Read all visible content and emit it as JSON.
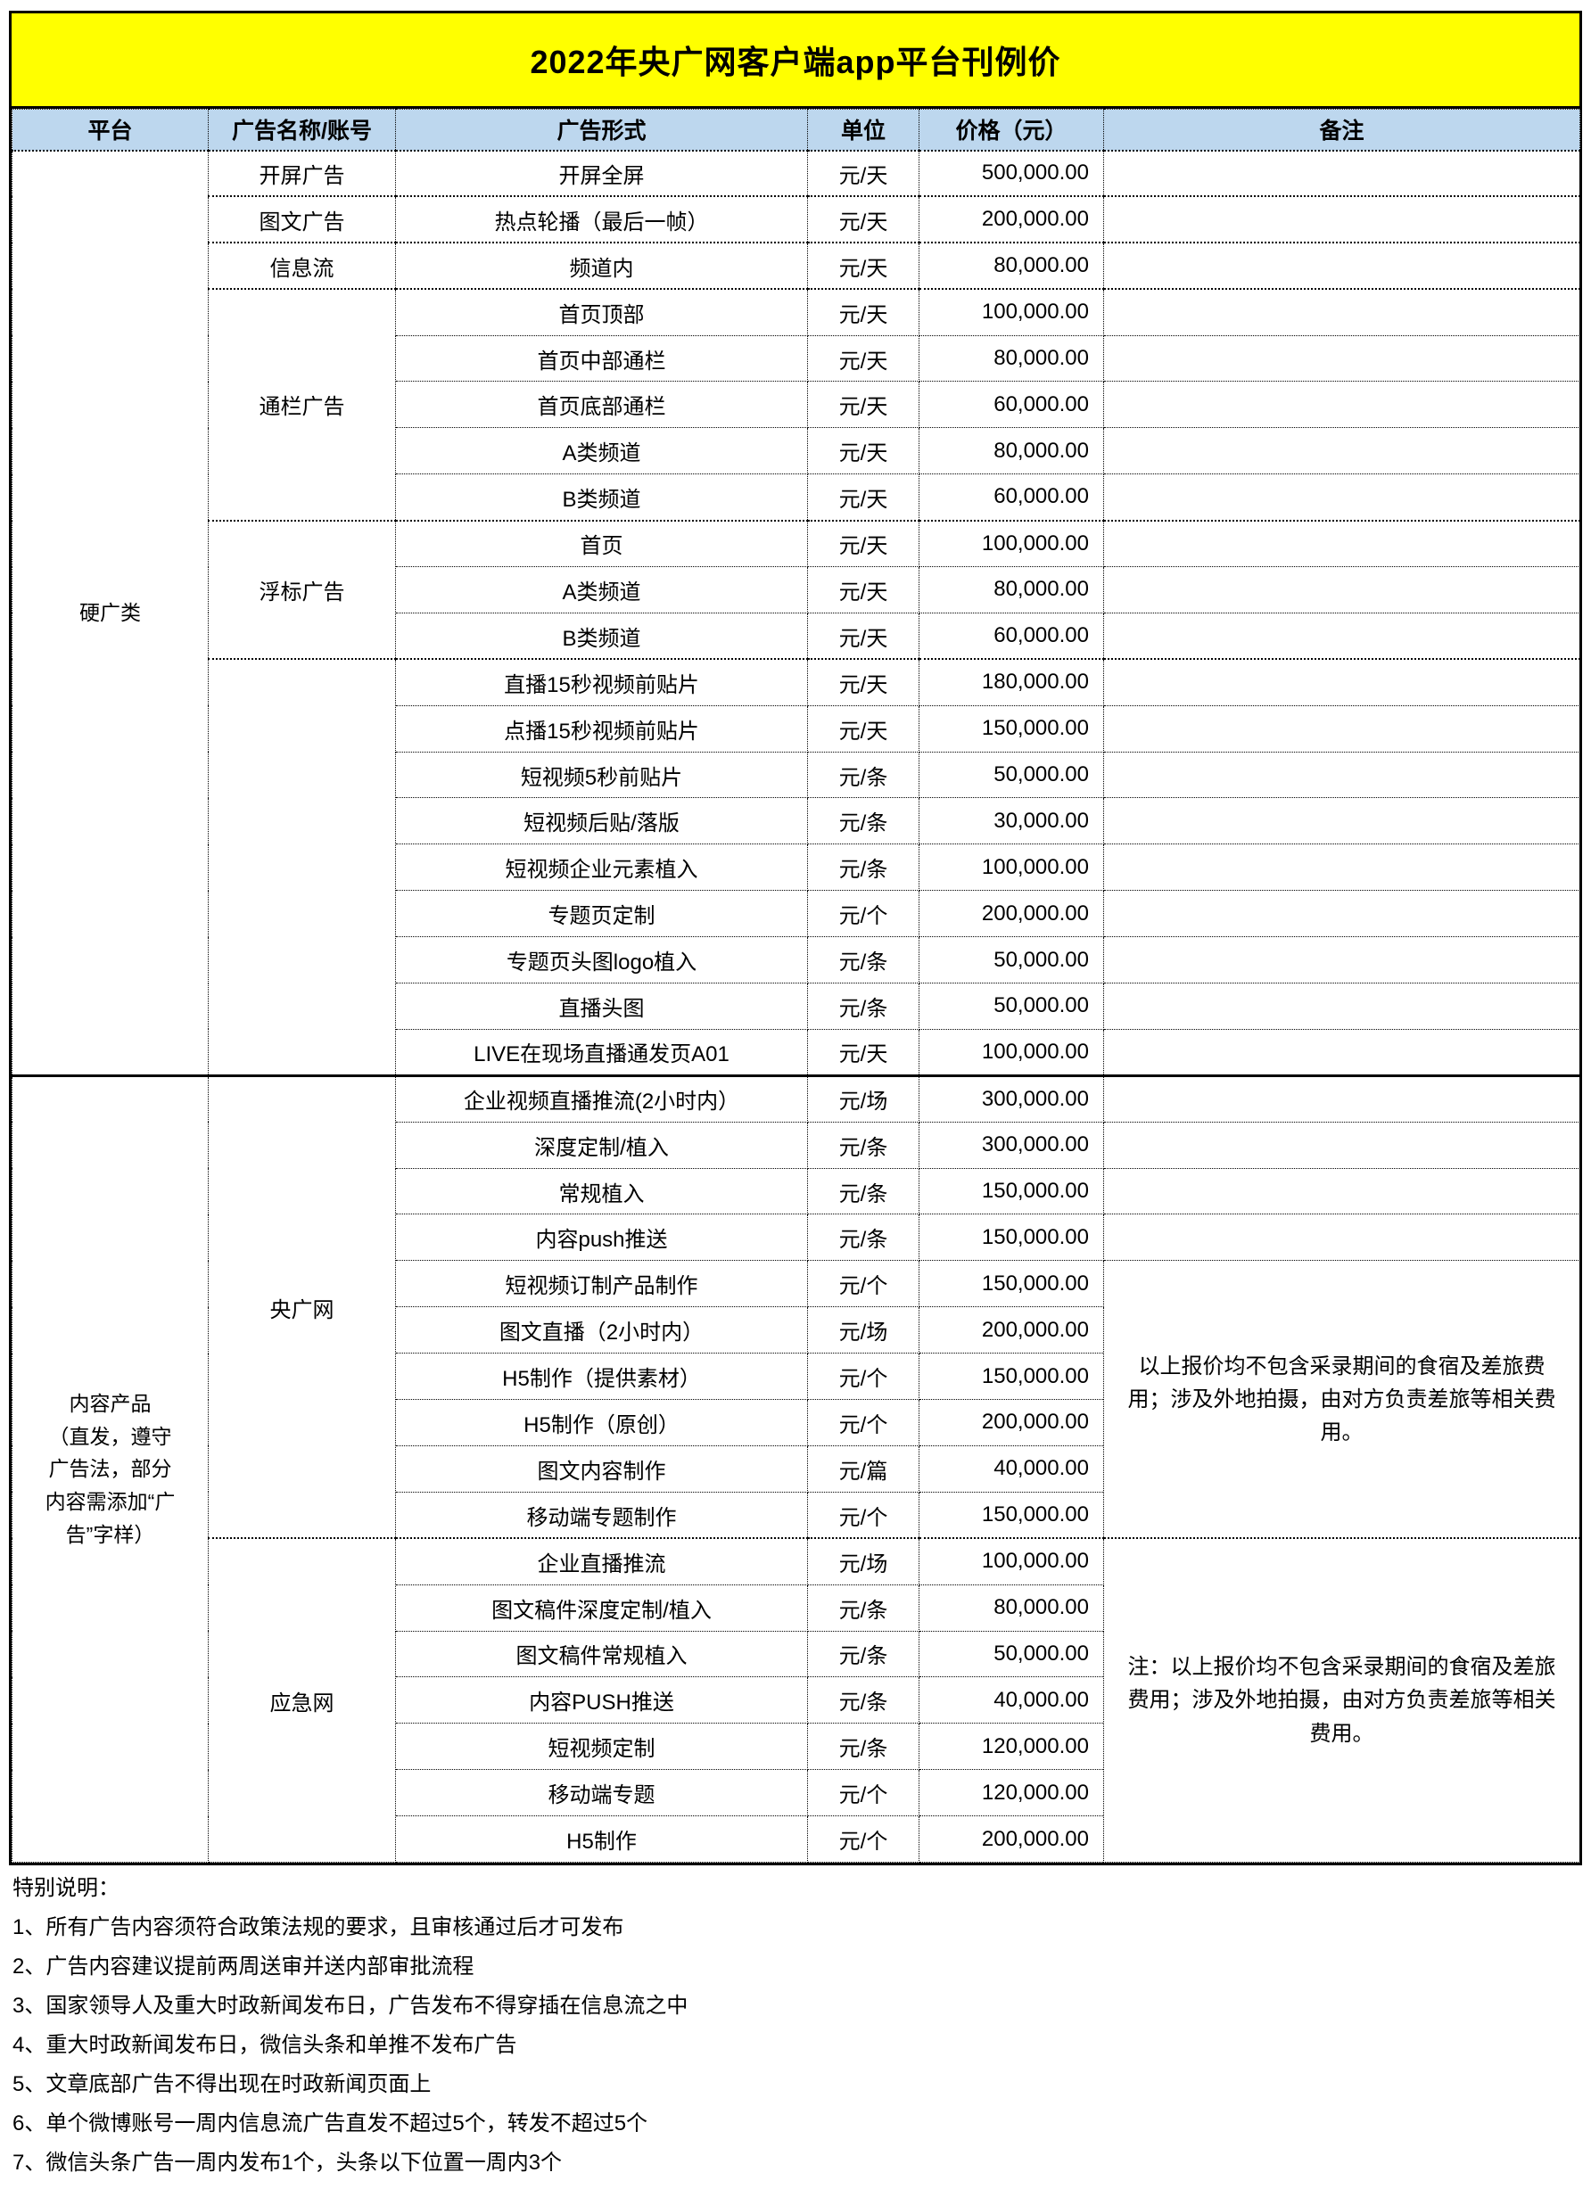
{
  "title": "2022年央广网客户端app平台刊例价",
  "colors": {
    "title_bg": "#FFFF00",
    "header_bg": "#BDD7EE",
    "border": "#000000",
    "page_bg": "#FFFFFF",
    "text": "#000000"
  },
  "table": {
    "headers": [
      "平台",
      "广告名称/账号",
      "广告形式",
      "单位",
      "价格（元）",
      "备注"
    ],
    "sections": [
      {
        "platform": "硬广类",
        "rows": [
          {
            "group": "开屏广告",
            "group_span": 1,
            "form": "开屏全屏",
            "unit": "元/天",
            "price": "500,000.00",
            "remark_span": 1,
            "remark": ""
          },
          {
            "group": "图文广告",
            "group_span": 1,
            "form": "热点轮播（最后一帧）",
            "unit": "元/天",
            "price": "200,000.00",
            "remark_span": 1,
            "remark": ""
          },
          {
            "group": "信息流",
            "group_span": 1,
            "form": "频道内",
            "unit": "元/天",
            "price": "80,000.00",
            "remark_span": 1,
            "remark": ""
          },
          {
            "group": "通栏广告",
            "group_span": 5,
            "form": "首页顶部",
            "unit": "元/天",
            "price": "100,000.00",
            "remark_span": 1,
            "remark": ""
          },
          {
            "form": "首页中部通栏",
            "unit": "元/天",
            "price": "80,000.00",
            "remark_span": 1,
            "remark": ""
          },
          {
            "form": "首页底部通栏",
            "unit": "元/天",
            "price": "60,000.00",
            "remark_span": 1,
            "remark": ""
          },
          {
            "form": "A类频道",
            "unit": "元/天",
            "price": "80,000.00",
            "remark_span": 1,
            "remark": ""
          },
          {
            "form": "B类频道",
            "unit": "元/天",
            "price": "60,000.00",
            "remark_span": 1,
            "remark": ""
          },
          {
            "group": "浮标广告",
            "group_span": 3,
            "form": "首页",
            "unit": "元/天",
            "price": "100,000.00",
            "remark_span": 1,
            "remark": ""
          },
          {
            "form": "A类频道",
            "unit": "元/天",
            "price": "80,000.00",
            "remark_span": 1,
            "remark": ""
          },
          {
            "form": "B类频道",
            "unit": "元/天",
            "price": "60,000.00",
            "remark_span": 1,
            "remark": ""
          },
          {
            "group": "",
            "group_span": 9,
            "form": "直播15秒视频前贴片",
            "unit": "元/天",
            "price": "180,000.00",
            "remark_span": 1,
            "remark": ""
          },
          {
            "form": "点播15秒视频前贴片",
            "unit": "元/天",
            "price": "150,000.00",
            "remark_span": 1,
            "remark": ""
          },
          {
            "form": "短视频5秒前贴片",
            "unit": "元/条",
            "price": "50,000.00",
            "remark_span": 1,
            "remark": ""
          },
          {
            "form": "短视频后贴/落版",
            "unit": "元/条",
            "price": "30,000.00",
            "remark_span": 1,
            "remark": ""
          },
          {
            "form": "短视频企业元素植入",
            "unit": "元/条",
            "price": "100,000.00",
            "remark_span": 1,
            "remark": ""
          },
          {
            "form": "专题页定制",
            "unit": "元/个",
            "price": "200,000.00",
            "remark_span": 1,
            "remark": ""
          },
          {
            "form": "专题页头图logo植入",
            "unit": "元/条",
            "price": "50,000.00",
            "remark_span": 1,
            "remark": ""
          },
          {
            "form": "直播头图",
            "unit": "元/条",
            "price": "50,000.00",
            "remark_span": 1,
            "remark": ""
          },
          {
            "form": "LIVE在现场直播通发页A01",
            "unit": "元/天",
            "price": "100,000.00",
            "remark_span": 1,
            "remark": ""
          }
        ]
      },
      {
        "platform": "内容产品\n（直发，遵守广告法，部分内容需添加“广告”字样）",
        "rows": [
          {
            "group": "央广网",
            "group_span": 10,
            "form": "企业视频直播推流(2小时内）",
            "unit": "元/场",
            "price": "300,000.00",
            "remark_span": 1,
            "remark": ""
          },
          {
            "form": "深度定制/植入",
            "unit": "元/条",
            "price": "300,000.00",
            "remark_span": 1,
            "remark": ""
          },
          {
            "form": "常规植入",
            "unit": "元/条",
            "price": "150,000.00",
            "remark_span": 1,
            "remark": ""
          },
          {
            "form": "内容push推送",
            "unit": "元/条",
            "price": "150,000.00",
            "remark_span": 1,
            "remark": ""
          },
          {
            "form": "短视频订制产品制作",
            "unit": "元/个",
            "price": "150,000.00",
            "remark_span": 6,
            "remark": "以上报价均不包含采录期间的食宿及差旅费用；涉及外地拍摄，由对方负责差旅等相关费用。"
          },
          {
            "form": "图文直播（2小时内）",
            "unit": "元/场",
            "price": "200,000.00",
            "remark_span": 0
          },
          {
            "form": "H5制作（提供素材）",
            "unit": "元/个",
            "price": "150,000.00",
            "remark_span": 0
          },
          {
            "form": "H5制作（原创）",
            "unit": "元/个",
            "price": "200,000.00",
            "remark_span": 0
          },
          {
            "form": "图文内容制作",
            "unit": "元/篇",
            "price": "40,000.00",
            "remark_span": 0
          },
          {
            "form": "移动端专题制作",
            "unit": "元/个",
            "price": "150,000.00",
            "remark_span": 0
          },
          {
            "group": "应急网",
            "group_span": 7,
            "form": "企业直播推流",
            "unit": "元/场",
            "price": "100,000.00",
            "remark_span": 7,
            "remark": "注：以上报价均不包含采录期间的食宿及差旅费用；涉及外地拍摄，由对方负责差旅等相关费用。"
          },
          {
            "form": "图文稿件深度定制/植入",
            "unit": "元/条",
            "price": "80,000.00",
            "remark_span": 0
          },
          {
            "form": "图文稿件常规植入",
            "unit": "元/条",
            "price": "50,000.00",
            "remark_span": 0
          },
          {
            "form": "内容PUSH推送",
            "unit": "元/条",
            "price": "40,000.00",
            "remark_span": 0
          },
          {
            "form": "短视频定制",
            "unit": "元/条",
            "price": "120,000.00",
            "remark_span": 0
          },
          {
            "form": "移动端专题",
            "unit": "元/个",
            "price": "120,000.00",
            "remark_span": 0
          },
          {
            "form": "H5制作",
            "unit": "元/个",
            "price": "200,000.00",
            "remark_span": 0
          }
        ]
      }
    ]
  },
  "notes": {
    "heading": "特别说明：",
    "items": [
      "1、所有广告内容须符合政策法规的要求，且审核通过后才可发布",
      "2、广告内容建议提前两周送审并送内部审批流程",
      "3、国家领导人及重大时政新闻发布日，广告发布不得穿插在信息流之中",
      "4、重大时政新闻发布日，微信头条和单推不发布广告",
      "5、文章底部广告不得出现在时政新闻页面上",
      "6、单个微博账号一周内信息流广告直发不超过5个，转发不超过5个",
      "7、微信头条广告一周内发布1个，头条以下位置一周内3个"
    ]
  }
}
